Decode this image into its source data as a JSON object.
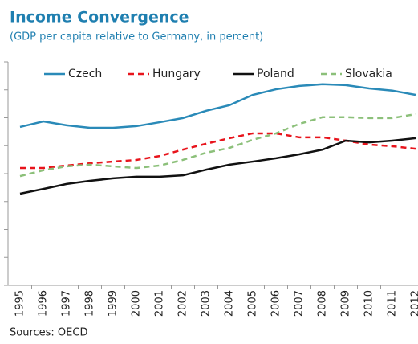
{
  "chart_data": {
    "type": "line",
    "title": "Income Convergence",
    "subtitle": "(GDP per capita relative to Germany, in percent)",
    "source": "Sources: OECD",
    "categories": [
      "1995",
      "1996",
      "1997",
      "1998",
      "1999",
      "2000",
      "2001",
      "2002",
      "2003",
      "2004",
      "2005",
      "2006",
      "2007",
      "2008",
      "2009",
      "2010",
      "2011",
      "2012"
    ],
    "series": [
      {
        "name": "Czech",
        "color": "#2a8ab8",
        "style": "solid",
        "values": [
          56.7,
          58.7,
          57.3,
          56.4,
          56.4,
          57.0,
          58.4,
          59.9,
          62.5,
          64.5,
          68.2,
          70.2,
          71.4,
          72.0,
          71.7,
          70.5,
          69.7,
          68.2
        ]
      },
      {
        "name": "Hungary",
        "color": "#e8141c",
        "style": "dashed",
        "values": [
          42.0,
          42.0,
          42.9,
          43.7,
          44.3,
          44.9,
          46.3,
          48.6,
          50.7,
          52.7,
          54.4,
          54.4,
          53.0,
          53.0,
          51.8,
          50.4,
          49.8,
          48.9
        ]
      },
      {
        "name": "Poland",
        "color": "#111111",
        "style": "solid",
        "values": [
          32.8,
          34.5,
          36.3,
          37.4,
          38.3,
          38.9,
          38.9,
          39.4,
          41.4,
          43.2,
          44.3,
          45.5,
          46.9,
          48.6,
          51.8,
          51.2,
          51.8,
          52.7
        ]
      },
      {
        "name": "Slovakia",
        "color": "#8cc07a",
        "style": "dashed",
        "values": [
          39.1,
          41.2,
          42.6,
          43.2,
          42.6,
          42.0,
          42.9,
          44.9,
          47.5,
          49.2,
          52.1,
          54.4,
          57.8,
          60.2,
          60.2,
          59.9,
          59.9,
          61.3
        ]
      }
    ],
    "ylim": [
      0,
      80
    ],
    "yticks": [
      0,
      10,
      20,
      30,
      40,
      50,
      60,
      70,
      80
    ],
    "legend": "top"
  }
}
